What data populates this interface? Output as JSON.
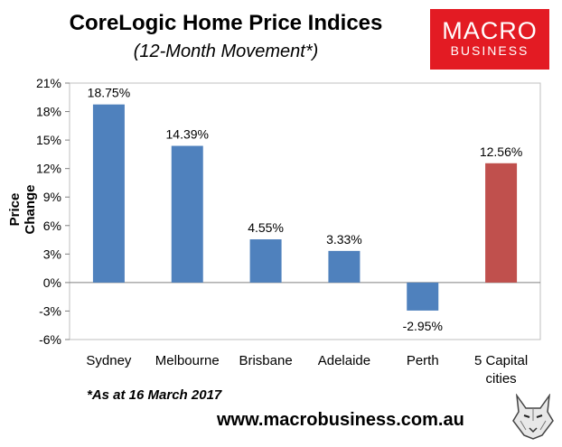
{
  "header": {
    "title": "CoreLogic Home Price Indices",
    "subtitle": "(12-Month Movement*)"
  },
  "logo": {
    "line1": "MACRO",
    "line2": "BUSINESS"
  },
  "footnote": "*As at 16 March 2017",
  "website": "www.macrobusiness.com.au",
  "colors": {
    "bar": "#4f81bd",
    "highlight_bar": "#c0504d",
    "brand": "#e31b23"
  },
  "chart_data": {
    "type": "bar",
    "categories": [
      "Sydney",
      "Melbourne",
      "Brisbane",
      "Adelaide",
      "Perth",
      "5 Capital cities"
    ],
    "values": [
      18.75,
      14.39,
      4.55,
      3.33,
      -2.95,
      12.56
    ],
    "data_labels": [
      "18.75%",
      "14.39%",
      "4.55%",
      "3.33%",
      "-2.95%",
      "12.56%"
    ],
    "highlight_index": 5,
    "ylabel": "Price Change",
    "ylim": [
      -6,
      21
    ],
    "yticks": [
      21,
      18,
      15,
      12,
      9,
      6,
      3,
      0,
      -3,
      -6
    ],
    "ytick_labels": [
      "21%",
      "18%",
      "15%",
      "12%",
      "9%",
      "6%",
      "3%",
      "0%",
      "-3%",
      "-6%"
    ],
    "grid": false,
    "legend": "none"
  }
}
